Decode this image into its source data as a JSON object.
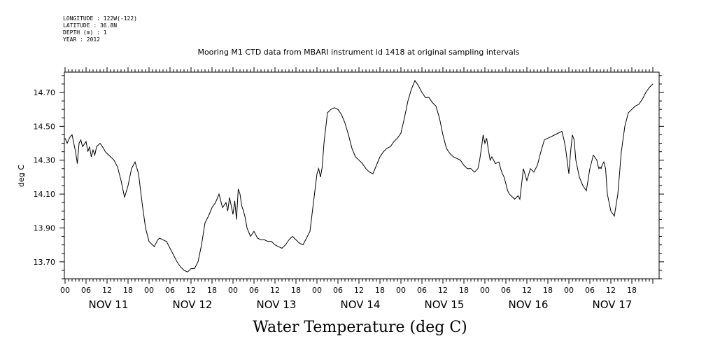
{
  "meta": {
    "longitude": "LONGITUDE : 122W(-122)",
    "latitude": "LATITUDE : 36.8N",
    "depth": "DEPTH (m) : 1",
    "year": "YEAR : 2012"
  },
  "chart_data": {
    "type": "line",
    "title": "Mooring M1 CTD data from MBARI instrument id 1418 at original sampling intervals",
    "xlabel": "Water Temperature (deg C)",
    "ylabel": "deg C",
    "ylim": [
      13.6,
      14.82
    ],
    "xlim_hours": [
      0,
      168
    ],
    "yticks": [
      13.7,
      13.9,
      14.1,
      14.3,
      14.5,
      14.7
    ],
    "ytick_labels": [
      "13.70",
      "13.90",
      "14.10",
      "14.30",
      "14.50",
      "14.70"
    ],
    "hour_tick_labels": [
      "00",
      "06",
      "12",
      "18"
    ],
    "day_labels": [
      "NOV 11",
      "NOV 12",
      "NOV 13",
      "NOV 14",
      "NOV 15",
      "NOV 16",
      "NOV 17"
    ],
    "grid": false,
    "series": [
      {
        "x": [
          0,
          0.6,
          1,
          1.5,
          2,
          2.5,
          3,
          3.5,
          4,
          4.5,
          5,
          6,
          6.5,
          7,
          7.5,
          8,
          8.5,
          9,
          10,
          11,
          11.5,
          12,
          13,
          14,
          15,
          16,
          17,
          18,
          19,
          20,
          21,
          22,
          23,
          24,
          25,
          25.5,
          26,
          26.5,
          27,
          28,
          29,
          30,
          31,
          32,
          33,
          34,
          35,
          36,
          37,
          38,
          39,
          40,
          41,
          42,
          43,
          44,
          45,
          46,
          46.5,
          47,
          47.5,
          48,
          48.5,
          49,
          49.5,
          50,
          50.5,
          51,
          51.5,
          52,
          53,
          54,
          55,
          56,
          57,
          58,
          59,
          60,
          61,
          62,
          63,
          64,
          65,
          66,
          67,
          68,
          69,
          70,
          71,
          72,
          72.5,
          73,
          73.5,
          74,
          75,
          76,
          77,
          78,
          79,
          80,
          81,
          82,
          83,
          84,
          85,
          86,
          87,
          88,
          89,
          90,
          91,
          92,
          93,
          94,
          95,
          96,
          97,
          98,
          99,
          100,
          101,
          102,
          103,
          104,
          105,
          106,
          107,
          108,
          109,
          110,
          111,
          112,
          113,
          114,
          115,
          116,
          117,
          118,
          118.5,
          119,
          119.5,
          120,
          120.5,
          121,
          121.5,
          122,
          123,
          124,
          124.5,
          125,
          125.5,
          126,
          126.5,
          127,
          128,
          128.5,
          129,
          129.5,
          130,
          131,
          132,
          133,
          134,
          135,
          136,
          137,
          138,
          139,
          140,
          141,
          142,
          142.5,
          143,
          143.5,
          144,
          144.5,
          145,
          145.5,
          146,
          147,
          148,
          149,
          150,
          151,
          152,
          152.3,
          152.6,
          152.9,
          153.2,
          153.5,
          154,
          154.5,
          155,
          156,
          157,
          158,
          159,
          160,
          161,
          162,
          163,
          164,
          165,
          166,
          167,
          168
        ],
        "y": [
          14.43,
          14.4,
          14.42,
          14.44,
          14.45,
          14.4,
          14.35,
          14.28,
          14.4,
          14.42,
          14.38,
          14.41,
          14.35,
          14.38,
          14.32,
          14.36,
          14.33,
          14.38,
          14.4,
          14.37,
          14.35,
          14.34,
          14.32,
          14.3,
          14.26,
          14.18,
          14.08,
          14.15,
          14.25,
          14.29,
          14.22,
          14.05,
          13.9,
          13.82,
          13.8,
          13.79,
          13.81,
          13.83,
          13.84,
          13.83,
          13.82,
          13.78,
          13.74,
          13.7,
          13.67,
          13.65,
          13.64,
          13.66,
          13.66,
          13.7,
          13.8,
          13.93,
          13.97,
          14.02,
          14.05,
          14.1,
          14.02,
          14.05,
          14.0,
          14.08,
          14.03,
          13.98,
          14.06,
          13.95,
          14.13,
          14.1,
          14.03,
          14.0,
          13.96,
          13.9,
          13.85,
          13.88,
          13.84,
          13.83,
          13.83,
          13.82,
          13.82,
          13.8,
          13.79,
          13.78,
          13.8,
          13.83,
          13.85,
          13.83,
          13.81,
          13.8,
          13.84,
          13.88,
          14.05,
          14.22,
          14.25,
          14.2,
          14.26,
          14.4,
          14.58,
          14.6,
          14.61,
          14.6,
          14.57,
          14.52,
          14.45,
          14.37,
          14.32,
          14.3,
          14.28,
          14.25,
          14.23,
          14.22,
          14.27,
          14.32,
          14.35,
          14.37,
          14.38,
          14.41,
          14.43,
          14.46,
          14.55,
          14.65,
          14.72,
          14.77,
          14.74,
          14.7,
          14.67,
          14.67,
          14.64,
          14.62,
          14.55,
          14.45,
          14.37,
          14.34,
          14.32,
          14.31,
          14.3,
          14.27,
          14.25,
          14.25,
          14.23,
          14.25,
          14.3,
          14.37,
          14.45,
          14.4,
          14.43,
          14.36,
          14.3,
          14.32,
          14.28,
          14.29,
          14.25,
          14.22,
          14.2,
          14.16,
          14.12,
          14.1,
          14.08,
          14.07,
          14.08,
          14.09,
          14.07,
          14.25,
          14.18,
          14.25,
          14.23,
          14.27,
          14.35,
          14.42,
          14.43,
          14.44,
          14.45,
          14.46,
          14.47,
          14.43,
          14.38,
          14.3,
          14.22,
          14.35,
          14.45,
          14.42,
          14.3,
          14.2,
          14.15,
          14.12,
          14.25,
          14.33,
          14.3,
          14.27,
          14.25,
          14.26,
          14.25,
          14.27,
          14.29,
          14.25,
          14.1,
          14.0,
          13.97,
          14.1,
          14.35,
          14.5,
          14.58,
          14.6,
          14.62,
          14.63,
          14.66,
          14.7,
          14.73,
          14.75
        ]
      }
    ]
  }
}
